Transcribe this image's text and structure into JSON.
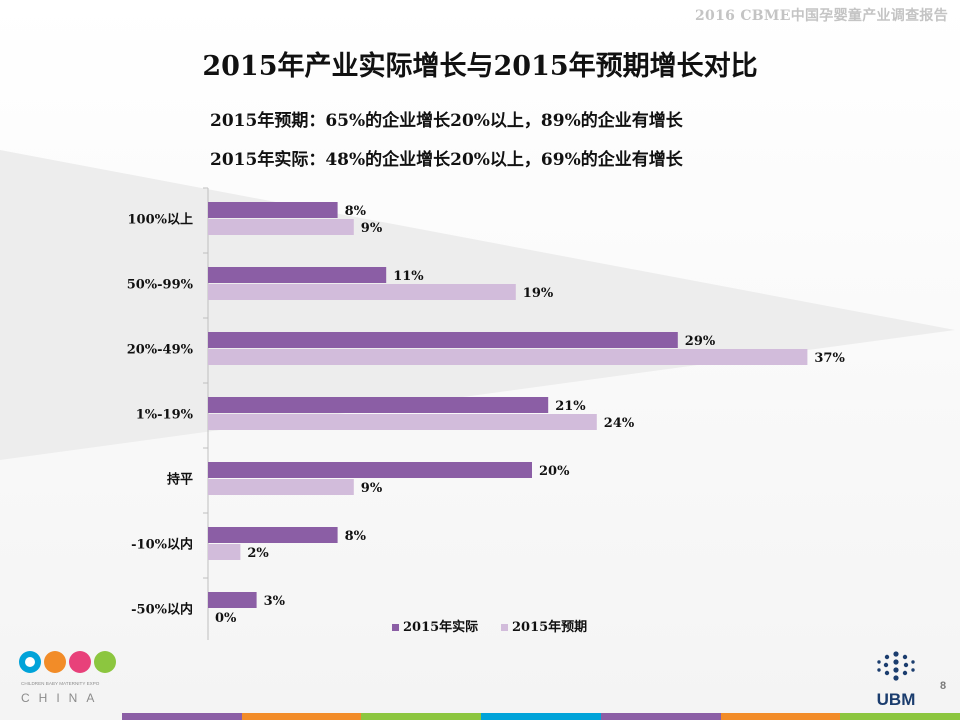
{
  "header": {
    "report_title": "2016 CBME中国孕婴童产业调查报告"
  },
  "slide": {
    "title": "2015年产业实际增长与2015年预期增长对比",
    "subtitle_expected": "2015年预期：65%的企业增长20%以上，89%的企业有增长",
    "subtitle_actual": "2015年实际：48%的企业增长20%以上，69%的企业有增长",
    "page_number": "8"
  },
  "chart_data": {
    "type": "bar",
    "orientation": "horizontal",
    "categories": [
      "100%以上",
      "50%-99%",
      "20%-49%",
      "1%-19%",
      "持平",
      "-10%以内",
      "-50%以内"
    ],
    "series": [
      {
        "name": "2015年实际",
        "values": [
          8,
          11,
          29,
          21,
          20,
          8,
          3
        ],
        "labels": [
          "8%",
          "11%",
          "29%",
          "21%",
          "20%",
          "8%",
          "3%"
        ],
        "color": "#8b5ea5"
      },
      {
        "name": "2015年预期",
        "values": [
          9,
          19,
          37,
          24,
          9,
          2,
          0
        ],
        "labels": [
          "9%",
          "19%",
          "37%",
          "24%",
          "9%",
          "2%",
          "0%"
        ],
        "color": "#d2bcdb"
      }
    ],
    "xlim": [
      0,
      40
    ],
    "grid": false,
    "legend": "bottom-right"
  },
  "logos": {
    "cbme": {
      "text": "CBME",
      "tagline": "CHILDREN BABY MATERNITY EXPO",
      "country": "CHINA"
    },
    "ubm": {
      "text": "UBM"
    }
  },
  "footer_colors": [
    "#8b5ea5",
    "#f28c28",
    "#8cc63f",
    "#00a3d9",
    "#8b5ea5",
    "#f28c28",
    "#8cc63f"
  ]
}
